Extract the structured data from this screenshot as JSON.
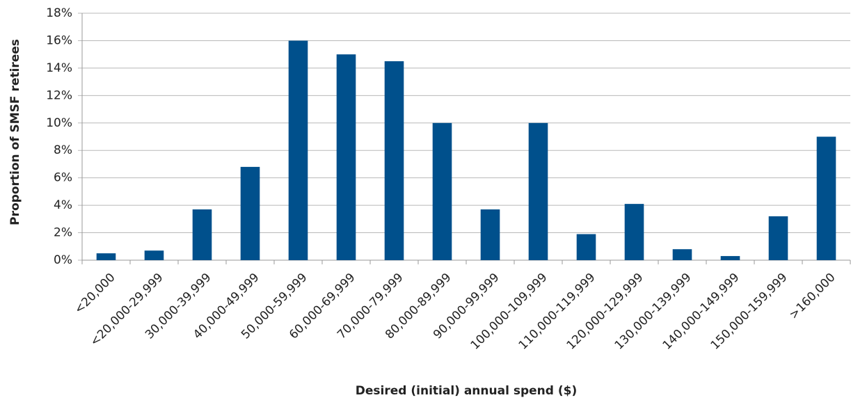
{
  "chart_data": {
    "type": "bar",
    "x_label": "Desired (initial) annual spend ($)",
    "y_label": "Proportion of SMSF retirees",
    "categories": [
      "<20,000",
      "<20,000-29,999",
      "30,000-39,999",
      "40,000-49,999",
      "50,000-59,999",
      "60,000-69,999",
      "70,000-79,999",
      "80,000-89,999",
      "90,000-99,999",
      "100,000-109,999",
      "110,000-119,999",
      "120,000-129,999",
      "130,000-139,999",
      "140,000-149,999",
      "150,000-159,999",
      ">160,000"
    ],
    "values": [
      0.5,
      0.7,
      3.7,
      6.8,
      16.0,
      15.0,
      14.5,
      10.0,
      3.7,
      10.0,
      1.9,
      4.1,
      0.8,
      0.3,
      3.2,
      9.0
    ],
    "color": "#00508c",
    "ylim": [
      0,
      18
    ],
    "yticks": [
      {
        "value": 0,
        "label": "0%"
      },
      {
        "value": 2,
        "label": "2%"
      },
      {
        "value": 4,
        "label": "4%"
      },
      {
        "value": 6,
        "label": "6%"
      },
      {
        "value": 8,
        "label": "8%"
      },
      {
        "value": 10,
        "label": "10%"
      },
      {
        "value": 12,
        "label": "12%"
      },
      {
        "value": 14,
        "label": "14%"
      },
      {
        "value": 16,
        "label": "16%"
      },
      {
        "value": 18,
        "label": "18%"
      }
    ],
    "grid": true
  }
}
